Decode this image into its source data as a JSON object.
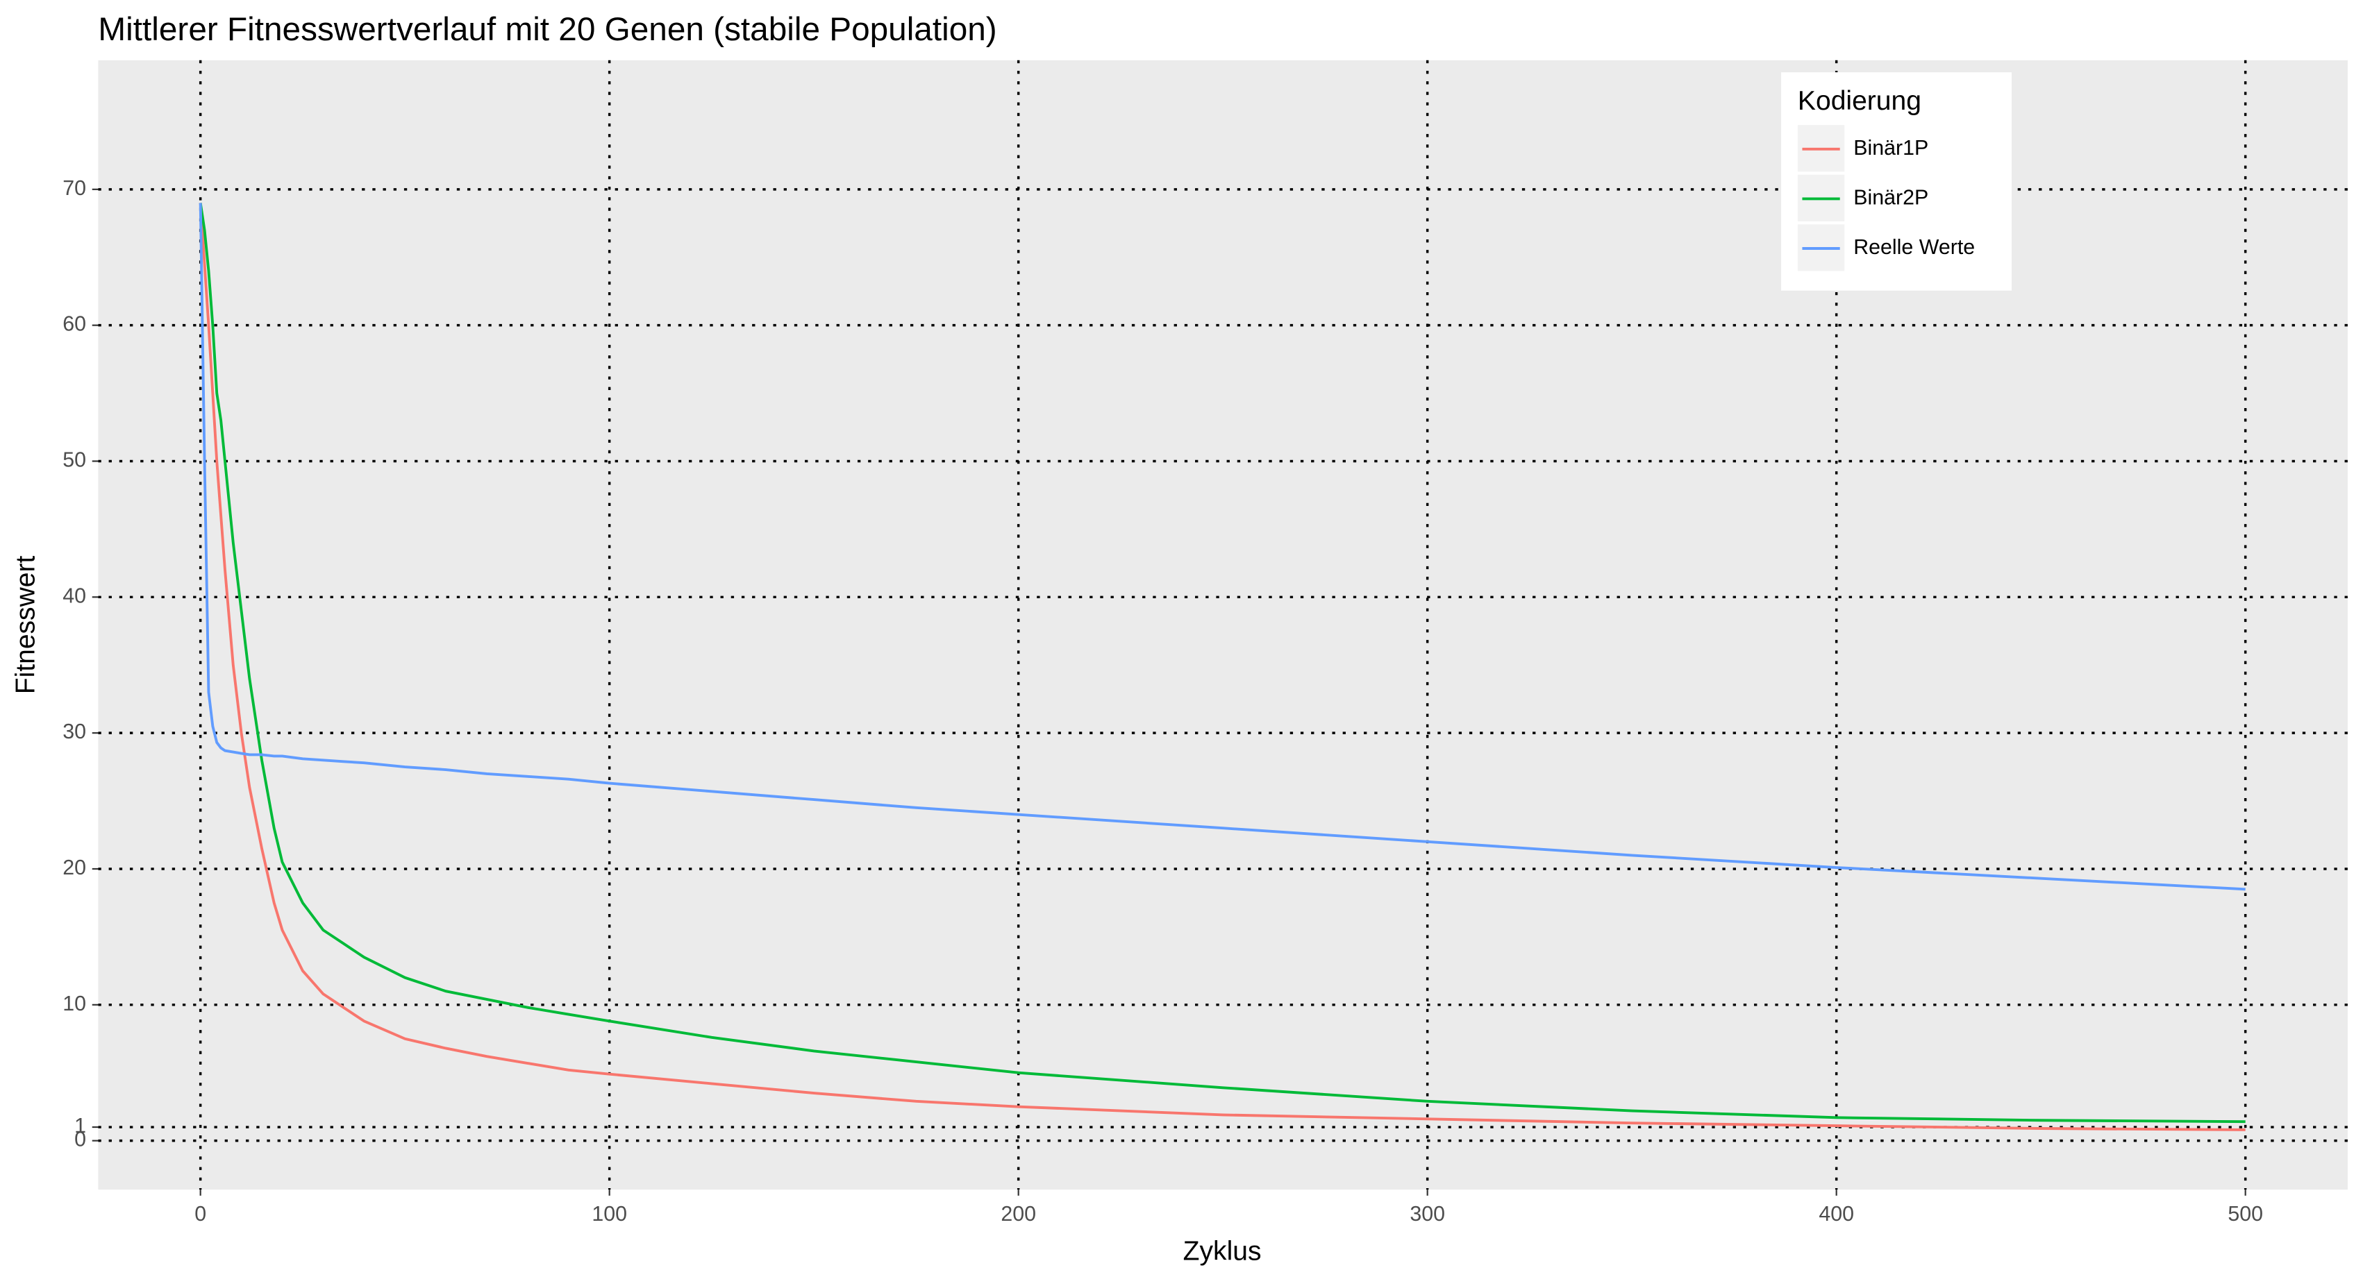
{
  "chart_data": {
    "type": "line",
    "title": "Mittlerer Fitnesswertverlauf mit 20 Genen (stabile Population)",
    "x_label": "Zyklus",
    "y_label": "Fitnesswert",
    "x": [
      0,
      1,
      2,
      3,
      4,
      5,
      6,
      8,
      10,
      12,
      15,
      18,
      20,
      25,
      30,
      35,
      40,
      50,
      60,
      70,
      80,
      90,
      100,
      125,
      150,
      175,
      200,
      250,
      300,
      350,
      400,
      450,
      500
    ],
    "series": [
      {
        "name": "Binär1P",
        "color": "#f8766d",
        "values": [
          69,
          64.5,
          60,
          55,
          50,
          46,
          42,
          35,
          30,
          26,
          21.5,
          17.5,
          15.5,
          12.5,
          10.8,
          9.8,
          8.8,
          7.5,
          6.8,
          6.2,
          5.7,
          5.2,
          4.9,
          4.2,
          3.5,
          2.9,
          2.5,
          1.9,
          1.6,
          1.3,
          1.1,
          0.9,
          0.8
        ]
      },
      {
        "name": "Binär2P",
        "color": "#00ba38",
        "values": [
          69,
          67,
          64,
          60,
          55,
          53,
          50,
          44,
          39,
          34,
          28,
          23,
          20.5,
          17.5,
          15.5,
          14.5,
          13.5,
          12,
          11,
          10.4,
          9.8,
          9.3,
          8.8,
          7.6,
          6.6,
          5.8,
          5.0,
          3.9,
          2.9,
          2.2,
          1.7,
          1.5,
          1.4
        ]
      },
      {
        "name": "Reelle Werte",
        "color": "#619cff",
        "values": [
          69,
          50,
          33,
          30.5,
          29.3,
          28.9,
          28.7,
          28.6,
          28.5,
          28.4,
          28.4,
          28.3,
          28.3,
          28.1,
          28.0,
          27.9,
          27.8,
          27.5,
          27.3,
          27.0,
          26.8,
          26.6,
          26.3,
          25.7,
          25.1,
          24.5,
          24.0,
          23.0,
          22.0,
          21.0,
          20.1,
          19.3,
          18.5
        ]
      }
    ],
    "legend_title": "Kodierung",
    "legend": "top-right",
    "xlim": [
      -25,
      525
    ],
    "xticks": [
      0,
      100,
      200,
      300,
      400,
      500
    ],
    "ylim": [
      -3.6,
      79.5
    ],
    "yticks": [
      0,
      1,
      10,
      20,
      30,
      40,
      50,
      60,
      70
    ],
    "grid": true
  }
}
